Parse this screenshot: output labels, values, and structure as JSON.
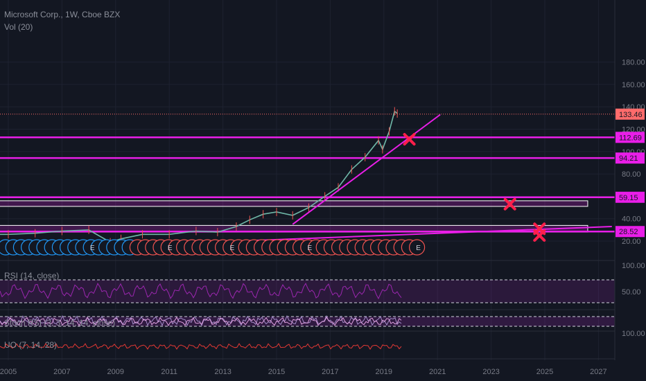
{
  "header": {
    "symbol_line": "Microsoft Corp., 1W, Cboe BZX",
    "volume_label": "Vol (20)"
  },
  "indicators": {
    "rsi_label": "RSI (14, close)",
    "stoch_label": "Stoch RSI (3, 3, 14, 14, close)",
    "uo_label": "UO (7, 14, 28)"
  },
  "colors": {
    "background": "#131722",
    "magenta": "#e91ee8",
    "price_line": "#ff6b6b",
    "marker_x": "#ff1f4b",
    "rsi": "#9c27b0",
    "stoch": "#a48cc9",
    "uo": "#e53935",
    "earnings_blue": "#2196f3",
    "earnings_red": "#ef5350"
  },
  "icons": {
    "marker": "x-marker-icon",
    "earnings": "earnings-badge-icon"
  },
  "chart_data": {
    "type": "line",
    "x_axis": {
      "ticks": [
        "2005",
        "2007",
        "2009",
        "2011",
        "2013",
        "2015",
        "2017",
        "2019",
        "2021",
        "2023",
        "2025",
        "2027"
      ]
    },
    "price_axis": {
      "ticks": [
        "20.00",
        "40.00",
        "60.00",
        "80.00",
        "100.00",
        "120.00",
        "140.00",
        "160.00",
        "180.00"
      ]
    },
    "price_series": {
      "x": [
        2004.3,
        2005,
        2006,
        2007,
        2008,
        2008.8,
        2009.2,
        2010,
        2011,
        2012,
        2012.8,
        2013.5,
        2014,
        2014.5,
        2015,
        2015.6,
        2016.2,
        2016.8,
        2017.3,
        2017.8,
        2018.3,
        2018.8,
        2018.95,
        2019.2,
        2019.4,
        2019.5
      ],
      "values": [
        26,
        26,
        27,
        29,
        30,
        19,
        22,
        26,
        26,
        29,
        28,
        33,
        39,
        44,
        46,
        43,
        50,
        60,
        68,
        84,
        95,
        110,
        102,
        118,
        136,
        134
      ]
    },
    "price_labels": [
      {
        "value": "133.46",
        "price": 133.46,
        "kind": "last-price"
      },
      {
        "value": "112.69",
        "price": 112.69,
        "kind": "level"
      },
      {
        "value": "94.21",
        "price": 94.21,
        "kind": "level"
      },
      {
        "value": "59.15",
        "price": 59.15,
        "kind": "level"
      },
      {
        "value": "28.52",
        "price": 28.52,
        "kind": "level"
      }
    ],
    "support_zones": [
      {
        "from_year": 2004.3,
        "to_year": 2026.6,
        "low": 51,
        "high": 56
      },
      {
        "from_year": 2004.3,
        "to_year": 2026.6,
        "low": 28,
        "high": 34
      }
    ],
    "trendlines": [
      {
        "from": [
          2015.6,
          35
        ],
        "to": [
          2021.1,
          133
        ]
      },
      {
        "from": [
          2013.6,
          20
        ],
        "to": [
          2027.5,
          33
        ]
      }
    ],
    "x_markers": [
      {
        "year": 2019.95,
        "price": 111
      },
      {
        "year": 2023.7,
        "price": 53
      },
      {
        "year": 2024.8,
        "price": 31
      },
      {
        "year": 2024.8,
        "price": 25
      }
    ],
    "earnings": {
      "blue_count": 17,
      "red_count": 37,
      "labels": [
        "E",
        "E",
        "E",
        "E",
        "E"
      ]
    },
    "rsi": {
      "ticks": [
        "100.00",
        "50.00"
      ],
      "band": [
        30,
        70
      ]
    },
    "uo": {
      "ticks": [
        "100.00"
      ]
    }
  }
}
